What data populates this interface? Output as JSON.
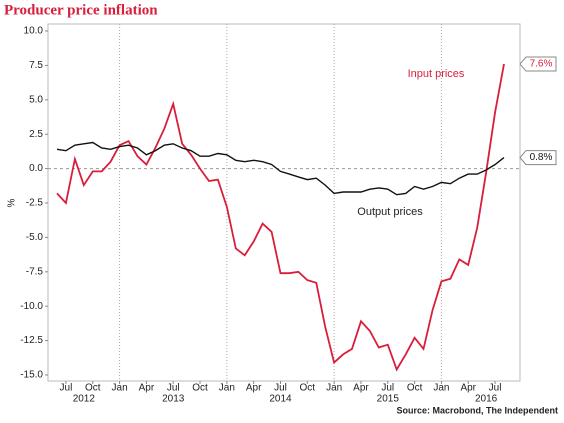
{
  "chart_data": {
    "type": "line",
    "title": "Producer price inflation",
    "y_label": "%",
    "source": "Source: Macrobond, The Independent",
    "annotations": [
      "Input prices",
      "Output prices"
    ],
    "x": [
      "2012-06",
      "2012-07",
      "2012-08",
      "2012-09",
      "2012-10",
      "2012-11",
      "2012-12",
      "2013-01",
      "2013-02",
      "2013-03",
      "2013-04",
      "2013-05",
      "2013-06",
      "2013-07",
      "2013-08",
      "2013-09",
      "2013-10",
      "2013-11",
      "2013-12",
      "2014-01",
      "2014-02",
      "2014-03",
      "2014-04",
      "2014-05",
      "2014-06",
      "2014-07",
      "2014-08",
      "2014-09",
      "2014-10",
      "2014-11",
      "2014-12",
      "2015-01",
      "2015-02",
      "2015-03",
      "2015-04",
      "2015-05",
      "2015-06",
      "2015-07",
      "2015-08",
      "2015-09",
      "2015-10",
      "2015-11",
      "2015-12",
      "2016-01",
      "2016-02",
      "2016-03",
      "2016-04",
      "2016-05",
      "2016-06",
      "2016-07",
      "2016-08"
    ],
    "series": [
      {
        "name": "Input prices",
        "color": "#d81e3a",
        "values": [
          -1.8,
          -2.5,
          0.7,
          -1.2,
          -0.2,
          -0.2,
          0.5,
          1.7,
          2.0,
          0.9,
          0.3,
          1.5,
          2.9,
          4.7,
          1.8,
          1.0,
          0.0,
          -0.9,
          -0.8,
          -2.8,
          -5.8,
          -6.3,
          -5.3,
          -4.0,
          -4.6,
          -7.6,
          -7.6,
          -7.5,
          -8.1,
          -8.3,
          -11.5,
          -14.1,
          -13.5,
          -13.1,
          -11.1,
          -11.8,
          -13.0,
          -12.8,
          -14.6,
          -13.5,
          -12.3,
          -13.1,
          -10.3,
          -8.2,
          -8.0,
          -6.6,
          -7.0,
          -4.3,
          -0.3,
          4.1,
          7.6
        ],
        "value_labels": [
          null,
          null,
          null,
          null,
          null,
          null,
          null,
          null,
          null,
          null,
          null,
          null,
          null,
          null,
          null,
          null,
          null,
          null,
          null,
          null,
          null,
          null,
          null,
          null,
          null,
          null,
          null,
          null,
          null,
          null,
          null,
          null,
          null,
          null,
          null,
          null,
          null,
          null,
          null,
          null,
          null,
          null,
          null,
          null,
          null,
          null,
          null,
          null,
          null,
          null,
          "7.6%"
        ]
      },
      {
        "name": "Output prices",
        "color": "#111111",
        "values": [
          1.4,
          1.3,
          1.7,
          1.8,
          1.9,
          1.5,
          1.4,
          1.6,
          1.7,
          1.5,
          1.0,
          1.3,
          1.7,
          1.8,
          1.5,
          1.3,
          0.9,
          0.9,
          1.1,
          1.0,
          0.6,
          0.5,
          0.6,
          0.5,
          0.3,
          -0.2,
          -0.4,
          -0.6,
          -0.8,
          -0.7,
          -1.2,
          -1.8,
          -1.7,
          -1.7,
          -1.7,
          -1.5,
          -1.4,
          -1.5,
          -1.9,
          -1.8,
          -1.3,
          -1.5,
          -1.3,
          -1.0,
          -1.1,
          -0.7,
          -0.4,
          -0.4,
          -0.1,
          0.3,
          0.8
        ],
        "value_labels": [
          null,
          null,
          null,
          null,
          null,
          null,
          null,
          null,
          null,
          null,
          null,
          null,
          null,
          null,
          null,
          null,
          null,
          null,
          null,
          null,
          null,
          null,
          null,
          null,
          null,
          null,
          null,
          null,
          null,
          null,
          null,
          null,
          null,
          null,
          null,
          null,
          null,
          null,
          null,
          null,
          null,
          null,
          null,
          null,
          null,
          null,
          null,
          null,
          null,
          null,
          "0.8%"
        ]
      }
    ],
    "xticks": [
      {
        "value": "2012-07",
        "label": "Jul"
      },
      {
        "value": "2012-10",
        "label": "Oct"
      },
      {
        "value": "2013-01",
        "label": "Jan"
      },
      {
        "value": "2013-04",
        "label": "Apr"
      },
      {
        "value": "2013-07",
        "label": "Jul"
      },
      {
        "value": "2013-10",
        "label": "Oct"
      },
      {
        "value": "2014-01",
        "label": "Jan"
      },
      {
        "value": "2014-04",
        "label": "Apr"
      },
      {
        "value": "2014-07",
        "label": "Jul"
      },
      {
        "value": "2014-10",
        "label": "Oct"
      },
      {
        "value": "2015-01",
        "label": "Jan"
      },
      {
        "value": "2015-04",
        "label": "Apr"
      },
      {
        "value": "2015-07",
        "label": "Jul"
      },
      {
        "value": "2015-10",
        "label": "Oct"
      },
      {
        "value": "2016-01",
        "label": "Jan"
      },
      {
        "value": "2016-04",
        "label": "Apr"
      },
      {
        "value": "2016-07",
        "label": "Jul"
      }
    ],
    "year_labels": [
      {
        "value": "2012-09",
        "label": "2012"
      },
      {
        "value": "2013-07",
        "label": "2013"
      },
      {
        "value": "2014-07",
        "label": "2014"
      },
      {
        "value": "2015-07",
        "label": "2015"
      },
      {
        "value": "2016-06",
        "label": "2016"
      }
    ],
    "ylim": [
      -15,
      10
    ],
    "yticks": [
      {
        "value": 10,
        "label": "10.0"
      },
      7.5,
      {
        "value": 5,
        "label": "5.0"
      },
      2.5,
      {
        "value": 0,
        "label": "0.0"
      },
      -2.5,
      {
        "value": -5,
        "label": "-5.0"
      },
      -7.5,
      {
        "value": -10,
        "label": "-10.0"
      },
      -12.5,
      {
        "value": -15,
        "label": "-15.0"
      }
    ],
    "year_gridlines": true,
    "zero_line": true
  }
}
